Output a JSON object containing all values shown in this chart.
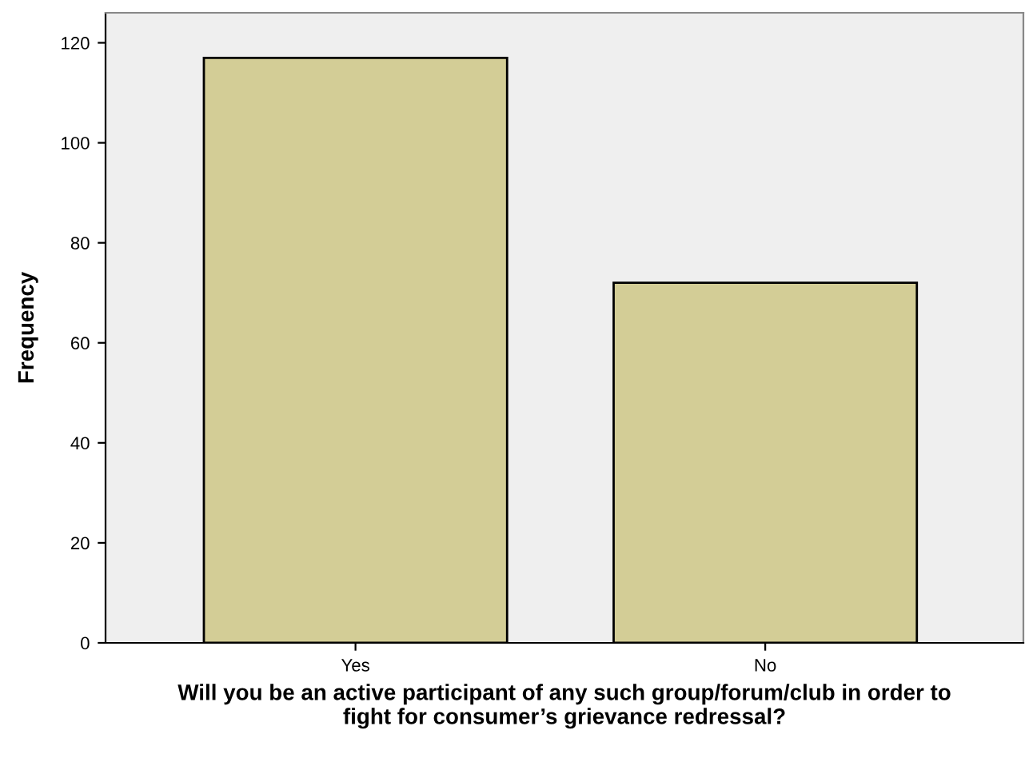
{
  "chart_data": {
    "type": "bar",
    "xlabel": "Will you be an active participant of any such group/forum/club in order to\nfight for consumer’s grievance redressal?",
    "ylabel": "Frequency",
    "categories": [
      "Yes",
      "No"
    ],
    "values": [
      117,
      72
    ],
    "color": "#d3cd96",
    "ylim": [
      0,
      126
    ],
    "yticks": [
      0,
      20,
      40,
      60,
      80,
      100,
      120
    ],
    "grid": false
  }
}
